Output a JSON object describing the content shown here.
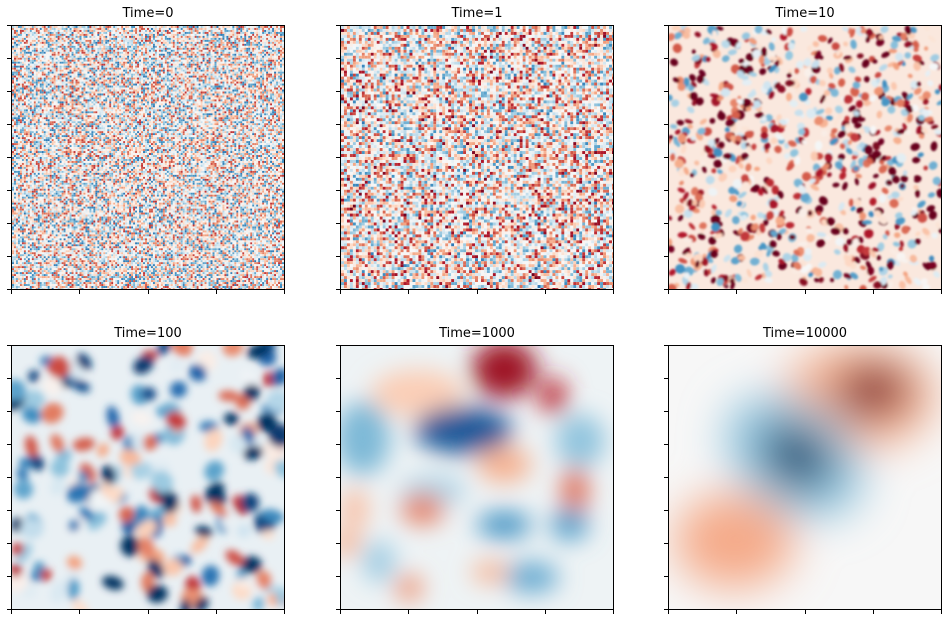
{
  "chart_data": [
    {
      "type": "heatmap",
      "title": "Time=0",
      "colormap": "RdBu_r",
      "texture": "white-noise",
      "feature_scale": 1,
      "seed": 11,
      "red_bias": 0.0,
      "xticklabels": [],
      "yticklabels": []
    },
    {
      "type": "heatmap",
      "title": "Time=1",
      "colormap": "RdBu_r",
      "texture": "fine-noise",
      "feature_scale": 1.4,
      "seed": 23,
      "red_bias": 0.2,
      "xticklabels": [],
      "yticklabels": []
    },
    {
      "type": "heatmap",
      "title": "Time=10",
      "colormap": "RdBu_r",
      "texture": "small-blobs",
      "feature_scale": 3.5,
      "seed": 37,
      "red_bias": 0.35,
      "xticklabels": [],
      "yticklabels": []
    },
    {
      "type": "heatmap",
      "title": "Time=100",
      "colormap": "RdBu_r",
      "texture": "medium-blobs",
      "feature_scale": 10,
      "seed": 41,
      "red_bias": -0.25,
      "xticklabels": [],
      "yticklabels": []
    },
    {
      "type": "heatmap",
      "title": "Time=1000",
      "colormap": "RdBu_r",
      "texture": "large-blobs",
      "feature_scale": 28,
      "seed": 53,
      "red_bias": -0.1,
      "xticklabels": [],
      "yticklabels": []
    },
    {
      "type": "heatmap",
      "title": "Time=10000",
      "colormap": "RdBu_r",
      "texture": "smooth-dipole",
      "feature_scale": 120,
      "seed": 67,
      "red_bias": 0.0,
      "xticklabels": [],
      "yticklabels": []
    }
  ],
  "colormap_stops": [
    "#053061",
    "#2166ac",
    "#4393c3",
    "#92c5de",
    "#d1e5f0",
    "#f7f7f7",
    "#fddbc7",
    "#f4a582",
    "#d6604d",
    "#b2182b",
    "#67001f"
  ]
}
